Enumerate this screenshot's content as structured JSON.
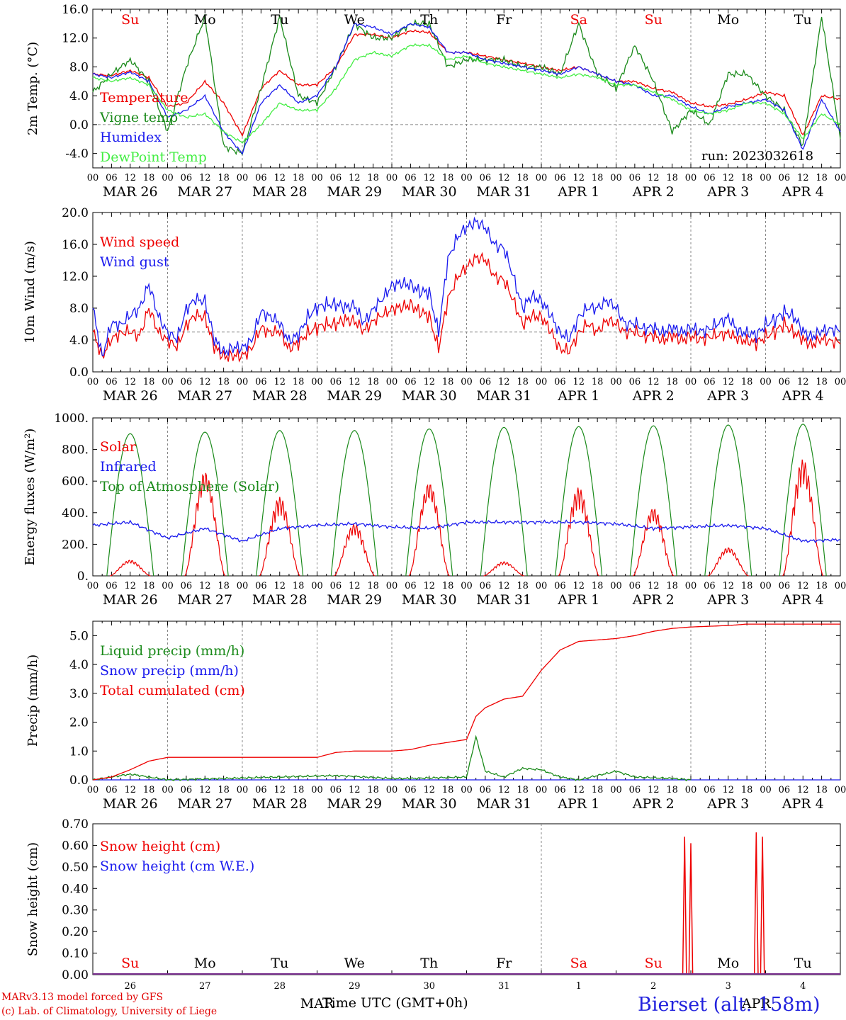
{
  "footer": {
    "model": "MARv3.13 model forced by GFS",
    "lab": "(c) Lab. of Climatology, University of Liege",
    "xaxis_label": "Time UTC (GMT+0h)",
    "station": "Bierset (alt. 158m)"
  },
  "run_label": "run: 2023032618",
  "colors": {
    "red": "#ee0000",
    "blue": "#1a1aee",
    "green": "#1a8a1a",
    "lightgreen": "#44ee44",
    "grid": "#555555",
    "dash": "#888888",
    "purple": "#7a3090"
  },
  "x_axis": {
    "days": [
      "MAR 26",
      "MAR 27",
      "MAR 28",
      "MAR 29",
      "MAR 30",
      "MAR 31",
      "APR  1",
      "APR  2",
      "APR  3",
      "APR  4"
    ],
    "hour_ticks": [
      "00",
      "06",
      "12",
      "18"
    ],
    "weekdays": [
      "Su",
      "Mo",
      "Tu",
      "We",
      "Th",
      "Fr",
      "Sa",
      "Su",
      "Mo",
      "Tu"
    ],
    "weekday_colors": [
      "red",
      "black",
      "black",
      "black",
      "black",
      "black",
      "red",
      "red",
      "black",
      "black"
    ],
    "snow_panel_days": [
      "26",
      "27",
      "28",
      "29",
      "30",
      "31",
      "1",
      "2",
      "3",
      "4"
    ],
    "snow_panel_month_label": "MAR",
    "snow_panel_month_label_2": "APR"
  },
  "chart_data": [
    {
      "type": "line",
      "id": "temp",
      "ylabel": "2m Temp. (°C)",
      "ylim": [
        -6,
        16
      ],
      "yticks": [
        "16.0",
        "12.0",
        "8.0",
        "4.0",
        "0.0",
        "-4.0"
      ],
      "ytick_values": [
        16,
        12,
        8,
        4,
        0,
        -4
      ],
      "hline": 0,
      "x_unit": "hours since MAR 26 00 UTC",
      "series": [
        {
          "name": "Temperature",
          "color": "red",
          "x": [
            0,
            6,
            12,
            18,
            24,
            30,
            36,
            42,
            48,
            54,
            60,
            66,
            72,
            78,
            84,
            90,
            96,
            102,
            108,
            114,
            120,
            126,
            132,
            138,
            144,
            150,
            156,
            162,
            168,
            174,
            180,
            186,
            192,
            198,
            204,
            210,
            216,
            222,
            228,
            234,
            240
          ],
          "values": [
            7,
            6.8,
            7.5,
            6.5,
            2.5,
            3,
            6,
            3,
            -1.5,
            5,
            7.5,
            5.5,
            5.5,
            8,
            12.5,
            12.5,
            12,
            13,
            12.8,
            10,
            10,
            9.5,
            9,
            8.5,
            8,
            7.5,
            8,
            7,
            6,
            6,
            5,
            4.5,
            3,
            2.5,
            2.8,
            3.5,
            4.5,
            4,
            -1.5,
            4,
            3.5
          ]
        },
        {
          "name": "Vigne temp",
          "color": "green",
          "x": [
            0,
            6,
            12,
            18,
            24,
            30,
            36,
            42,
            48,
            54,
            60,
            66,
            72,
            78,
            84,
            90,
            96,
            102,
            108,
            114,
            120,
            126,
            132,
            138,
            144,
            150,
            156,
            162,
            168,
            174,
            180,
            186,
            192,
            198,
            204,
            210,
            216,
            222,
            228,
            234,
            240
          ],
          "values": [
            4.5,
            7,
            9,
            6,
            -1,
            8,
            15,
            -3,
            -4,
            5,
            15,
            4,
            3,
            8,
            14,
            12,
            12,
            14,
            14,
            8,
            9,
            9,
            9,
            8,
            8,
            7,
            14,
            7,
            5,
            11,
            6,
            -1,
            2,
            0,
            7,
            7,
            4,
            2,
            -3,
            15,
            -2
          ]
        },
        {
          "name": "Humidex",
          "color": "blue",
          "x": [
            0,
            6,
            12,
            18,
            24,
            30,
            36,
            42,
            48,
            54,
            60,
            66,
            72,
            78,
            84,
            90,
            96,
            102,
            108,
            114,
            120,
            126,
            132,
            138,
            144,
            150,
            156,
            162,
            168,
            174,
            180,
            186,
            192,
            198,
            204,
            210,
            216,
            222,
            228,
            234,
            240
          ],
          "values": [
            7,
            6.5,
            7.3,
            6,
            1,
            2,
            4,
            -1,
            -4,
            3,
            5.5,
            3,
            4,
            8,
            14,
            13.5,
            12.5,
            14,
            13.5,
            10,
            10,
            9,
            8.5,
            8,
            7.5,
            7,
            8,
            7,
            6,
            5.5,
            4,
            4,
            2.5,
            1.5,
            2.5,
            3,
            3.5,
            2,
            -3.5,
            3.5,
            -1
          ]
        },
        {
          "name": "DewPoint Temp",
          "color": "lightgreen",
          "x": [
            0,
            6,
            12,
            18,
            24,
            30,
            36,
            42,
            48,
            54,
            60,
            66,
            72,
            78,
            84,
            90,
            96,
            102,
            108,
            114,
            120,
            126,
            132,
            138,
            144,
            150,
            156,
            162,
            168,
            174,
            180,
            186,
            192,
            198,
            204,
            210,
            216,
            222,
            228,
            234,
            240
          ],
          "values": [
            6.5,
            6,
            6.5,
            5.5,
            2,
            1,
            1.5,
            -1,
            -2.5,
            0,
            3,
            2,
            2,
            5,
            9,
            10,
            9.5,
            11,
            11,
            9,
            9.5,
            8.5,
            8,
            7.5,
            7,
            6.5,
            7,
            6.5,
            5.5,
            5.5,
            4.5,
            3.5,
            2,
            1.5,
            2,
            3,
            3,
            1.5,
            -2,
            1.5,
            0
          ]
        }
      ]
    },
    {
      "type": "line",
      "id": "wind",
      "ylabel": "10m Wind (m/s)",
      "ylim": [
        0,
        20
      ],
      "yticks": [
        "20.0",
        "16.0",
        "12.0",
        "8.0",
        "4.0",
        "0.0"
      ],
      "ytick_values": [
        20,
        16,
        12,
        8,
        4,
        0
      ],
      "hline": 5,
      "series": [
        {
          "name": "Wind speed",
          "color": "red",
          "x": [
            0,
            3,
            6,
            9,
            12,
            15,
            18,
            21,
            24,
            27,
            30,
            33,
            36,
            39,
            42,
            45,
            48,
            51,
            54,
            57,
            60,
            63,
            66,
            69,
            72,
            75,
            78,
            81,
            84,
            87,
            90,
            93,
            96,
            99,
            102,
            105,
            108,
            111,
            114,
            117,
            120,
            123,
            126,
            129,
            132,
            135,
            138,
            141,
            144,
            147,
            150,
            153,
            156,
            159,
            162,
            165,
            168,
            171,
            174,
            177,
            180,
            183,
            186,
            189,
            192,
            195,
            198,
            201,
            204,
            207,
            210,
            213,
            216,
            219,
            222,
            225,
            228,
            231,
            234,
            237,
            240
          ],
          "values": [
            5,
            2,
            4,
            5,
            5,
            4.5,
            8,
            5,
            4,
            3,
            6,
            7,
            7,
            3,
            2,
            2,
            2,
            3,
            5.5,
            5,
            5,
            3,
            3.5,
            5,
            5.5,
            6,
            6,
            6.5,
            6.5,
            5,
            6.5,
            7,
            8,
            8,
            8.5,
            7.5,
            7,
            3,
            9,
            12,
            13,
            14.5,
            14,
            12,
            11.5,
            9,
            6,
            7,
            7,
            5,
            3,
            2.5,
            5,
            6,
            5,
            6.5,
            6,
            5,
            5,
            4.5,
            4.5,
            4,
            4.5,
            4,
            4.5,
            4,
            4.5,
            4.5,
            5,
            4,
            4,
            3.5,
            4.5,
            5,
            6,
            5,
            4,
            3.5,
            4,
            4,
            3.5
          ]
        },
        {
          "name": "Wind gust",
          "color": "blue",
          "x": [
            0,
            3,
            6,
            9,
            12,
            15,
            18,
            21,
            24,
            27,
            30,
            33,
            36,
            39,
            42,
            45,
            48,
            51,
            54,
            57,
            60,
            63,
            66,
            69,
            72,
            75,
            78,
            81,
            84,
            87,
            90,
            93,
            96,
            99,
            102,
            105,
            108,
            111,
            114,
            117,
            120,
            123,
            126,
            129,
            132,
            135,
            138,
            141,
            144,
            147,
            150,
            153,
            156,
            159,
            162,
            165,
            168,
            171,
            174,
            177,
            180,
            183,
            186,
            189,
            192,
            195,
            198,
            201,
            204,
            207,
            210,
            213,
            216,
            219,
            222,
            225,
            228,
            231,
            234,
            237,
            240
          ],
          "values": [
            8,
            2,
            6,
            6,
            7,
            8,
            11,
            7,
            5,
            4,
            8,
            9,
            9,
            4,
            2.5,
            3,
            3,
            4,
            7.5,
            7,
            6,
            4,
            4.5,
            7,
            8,
            8.5,
            8.5,
            8,
            8.5,
            6,
            8,
            9,
            11,
            11,
            11,
            10,
            10,
            5,
            14,
            17,
            18,
            19,
            18,
            16,
            15.5,
            12,
            8,
            9.5,
            9,
            7,
            5,
            4,
            7,
            8,
            8,
            9,
            8,
            6,
            6,
            5.5,
            5.5,
            5,
            5.5,
            5,
            5.5,
            5,
            5.5,
            6,
            7,
            5,
            5,
            4.5,
            6,
            6.5,
            7.5,
            7,
            5,
            4.5,
            5,
            5.5,
            5
          ]
        }
      ]
    },
    {
      "type": "line",
      "id": "energy",
      "ylabel": "Energy fluxes (W/m²)",
      "ylim": [
        0,
        1000
      ],
      "yticks": [
        "1000.",
        "800.",
        "600.",
        "400.",
        "200.",
        "0."
      ],
      "ytick_values": [
        1000,
        800,
        600,
        400,
        200,
        0
      ],
      "series": [
        {
          "name": "Solar",
          "color": "red",
          "peak_values": [
            100,
            660,
            500,
            330,
            590,
            90,
            560,
            430,
            180,
            740
          ]
        },
        {
          "name": "Infrared",
          "color": "blue",
          "x": [
            0,
            12,
            24,
            36,
            48,
            60,
            72,
            84,
            96,
            108,
            120,
            132,
            144,
            156,
            168,
            180,
            192,
            204,
            216,
            228,
            240
          ],
          "values": [
            320,
            340,
            240,
            300,
            220,
            300,
            320,
            330,
            310,
            300,
            340,
            340,
            340,
            340,
            330,
            300,
            310,
            320,
            300,
            220,
            230
          ]
        },
        {
          "name": "Top of Atmosphere (Solar)",
          "color": "green",
          "peak_values": [
            900,
            910,
            920,
            920,
            930,
            940,
            945,
            950,
            955,
            960
          ]
        }
      ]
    },
    {
      "type": "line",
      "id": "precip",
      "ylabel": "Precip (mm/h)",
      "ylim": [
        0,
        5.5
      ],
      "yticks": [
        "5.0",
        "4.0",
        "3.0",
        "2.0",
        "1.0",
        "0.0"
      ],
      "ytick_values": [
        5,
        4,
        3,
        2,
        1,
        0
      ],
      "series": [
        {
          "name": "Liquid precip (mm/h)",
          "color": "green",
          "x": [
            0,
            6,
            12,
            18,
            24,
            78,
            96,
            102,
            120,
            123,
            126,
            132,
            138,
            144,
            150,
            156,
            168,
            174,
            186,
            192
          ],
          "values": [
            0,
            0.1,
            0.2,
            0.1,
            0,
            0.15,
            0.05,
            0.05,
            0.1,
            1.5,
            0.3,
            0.1,
            0.4,
            0.35,
            0.1,
            0,
            0.3,
            0.1,
            0.05,
            0
          ]
        },
        {
          "name": "Snow precip (mm/h)",
          "color": "blue",
          "x": [
            0,
            240
          ],
          "values": [
            0,
            0
          ]
        },
        {
          "name": "Total cumulated (cm)",
          "color": "red",
          "x": [
            0,
            6,
            12,
            18,
            24,
            30,
            42,
            60,
            72,
            78,
            84,
            90,
            96,
            102,
            108,
            114,
            120,
            123,
            126,
            132,
            138,
            144,
            150,
            156,
            162,
            168,
            174,
            180,
            186,
            192,
            204,
            210,
            216,
            228,
            240
          ],
          "values": [
            0,
            0.1,
            0.35,
            0.65,
            0.78,
            0.78,
            0.78,
            0.78,
            0.78,
            0.95,
            1.0,
            1.0,
            1.0,
            1.05,
            1.2,
            1.3,
            1.4,
            2.2,
            2.5,
            2.8,
            2.9,
            3.8,
            4.5,
            4.8,
            4.85,
            4.9,
            5.0,
            5.15,
            5.25,
            5.3,
            5.35,
            5.4,
            5.4,
            5.4,
            5.4
          ]
        }
      ]
    },
    {
      "type": "line",
      "id": "snow",
      "ylabel": "Snow height (cm)",
      "ylim": [
        0,
        0.7
      ],
      "yticks": [
        "0.70",
        "0.60",
        "0.50",
        "0.40",
        "0.30",
        "0.20",
        "0.10",
        "0.00"
      ],
      "ytick_values": [
        0.7,
        0.6,
        0.5,
        0.4,
        0.3,
        0.2,
        0.1,
        0
      ],
      "series": [
        {
          "name": "Snow height (cm)",
          "color": "red",
          "spikes": [
            {
              "x": 190,
              "value": 0.64
            },
            {
              "x": 192,
              "value": 0.61
            },
            {
              "x": 213,
              "value": 0.66
            },
            {
              "x": 215,
              "value": 0.64
            }
          ]
        },
        {
          "name": "Snow height (cm W.E.)",
          "color": "blue",
          "x": [
            0,
            240
          ],
          "values": [
            0,
            0
          ]
        }
      ]
    }
  ]
}
